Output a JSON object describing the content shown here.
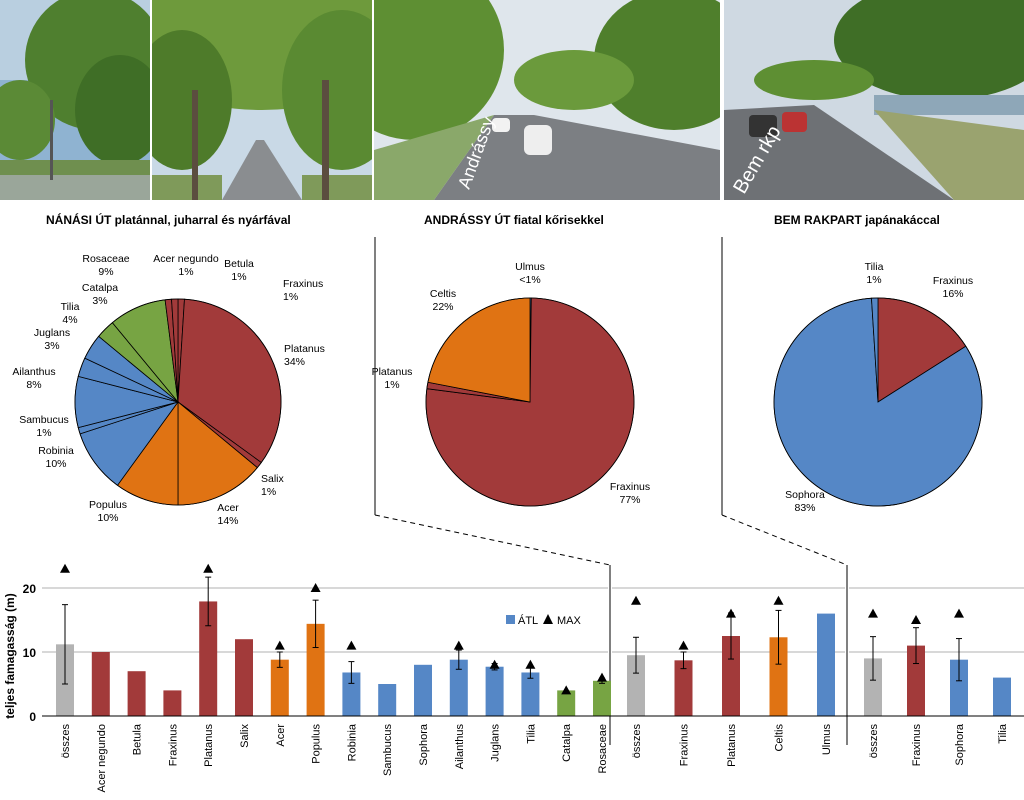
{
  "photos": [
    {
      "name": "nanasi-ut-photo-1"
    },
    {
      "name": "nanasi-ut-photo-2"
    },
    {
      "name": "andrassy-ut-photo",
      "sign": "Andrássy"
    },
    {
      "name": "bem-rakpart-photo",
      "sign": "Bem rkp"
    }
  ],
  "titles": {
    "nanasi": "NÁNÁSI ÚT platánnal, juharral és nyárfával",
    "andrassy": "ANDRÁSSY ÚT fiatal kőrisekkel",
    "bem": "BEM RAKPART japánakáccal"
  },
  "colors": {
    "red": "#a23a3a",
    "orange": "#e07313",
    "blue": "#5587c6",
    "green": "#77a443",
    "gray": "#b3b3b3"
  },
  "chart_data": [
    {
      "type": "pie",
      "title": "NÁNÁSI ÚT platánnal, juharral és nyárfával",
      "slices": [
        {
          "label": "Fraxinus",
          "value_label": "1%",
          "value": 1,
          "color": "red"
        },
        {
          "label": "Platanus",
          "value_label": "34%",
          "value": 34,
          "color": "red"
        },
        {
          "label": "Salix",
          "value_label": "1%",
          "value": 1,
          "color": "red"
        },
        {
          "label": "Acer",
          "value_label": "14%",
          "value": 14,
          "color": "orange"
        },
        {
          "label": "Populus",
          "value_label": "10%",
          "value": 10,
          "color": "orange"
        },
        {
          "label": "Robinia",
          "value_label": "10%",
          "value": 10,
          "color": "blue"
        },
        {
          "label": "Sambucus",
          "value_label": "1%",
          "value": 1,
          "color": "blue"
        },
        {
          "label": "Ailanthus",
          "value_label": "8%",
          "value": 8,
          "color": "blue"
        },
        {
          "label": "Juglans",
          "value_label": "3%",
          "value": 3,
          "color": "blue"
        },
        {
          "label": "Tilia",
          "value_label": "4%",
          "value": 4,
          "color": "blue"
        },
        {
          "label": "Catalpa",
          "value_label": "3%",
          "value": 3,
          "color": "green"
        },
        {
          "label": "Rosaceae",
          "value_label": "9%",
          "value": 9,
          "color": "green"
        },
        {
          "label": "Acer negundo",
          "value_label": "1%",
          "value": 1,
          "color": "red"
        },
        {
          "label": "Betula",
          "value_label": "1%",
          "value": 1,
          "color": "red"
        }
      ]
    },
    {
      "type": "pie",
      "title": "ANDRÁSSY ÚT fiatal kőrisekkel",
      "slices": [
        {
          "label": "Ulmus",
          "value_label": "<1%",
          "value": 0.2,
          "color": "blue"
        },
        {
          "label": "Fraxinus",
          "value_label": "77%",
          "value": 77,
          "color": "red"
        },
        {
          "label": "Platanus",
          "value_label": "1%",
          "value": 1,
          "color": "red"
        },
        {
          "label": "Celtis",
          "value_label": "22%",
          "value": 22,
          "color": "orange"
        }
      ]
    },
    {
      "type": "pie",
      "title": "BEM RAKPART japánakáccal",
      "slices": [
        {
          "label": "Fraxinus",
          "value_label": "16%",
          "value": 16,
          "color": "red"
        },
        {
          "label": "Sophora",
          "value_label": "83%",
          "value": 83,
          "color": "blue"
        },
        {
          "label": "Tilia",
          "value_label": "1%",
          "value": 1,
          "color": "blue"
        }
      ]
    },
    {
      "type": "bar",
      "ylabel": "teljes famagasság (m)",
      "ylim": [
        0,
        24
      ],
      "yticks": [
        0,
        10,
        20
      ],
      "legend": [
        {
          "label": "ÁTL",
          "color": "blue"
        },
        {
          "label": "MAX",
          "marker": "triangle"
        }
      ],
      "legend_position": "right of upper-middle",
      "groups": [
        {
          "name": "Nánási út",
          "categories": [
            "összes",
            "Acer negundo",
            "Betula",
            "Fraxinus",
            "Platanus",
            "Salix",
            "Acer",
            "Populus",
            "Robinia",
            "Sambucus",
            "Sophora",
            "Ailanthus",
            "Juglans",
            "Tilia",
            "Catalpa",
            "Rosaceae"
          ],
          "values": [
            11.2,
            10,
            7,
            4,
            17.9,
            12,
            8.8,
            14.4,
            6.8,
            5,
            8,
            8.8,
            7.7,
            6.8,
            4,
            5.5
          ],
          "err": [
            6.2,
            null,
            null,
            null,
            3.8,
            null,
            1.2,
            3.7,
            1.7,
            null,
            null,
            1.5,
            0.5,
            0.9,
            null,
            0.4
          ],
          "max": [
            23,
            null,
            null,
            null,
            23,
            null,
            11,
            20,
            11,
            null,
            null,
            11,
            8,
            8,
            4,
            6
          ],
          "colors": [
            "gray",
            "red",
            "red",
            "red",
            "red",
            "red",
            "orange",
            "orange",
            "blue",
            "blue",
            "blue",
            "blue",
            "blue",
            "blue",
            "green",
            "green"
          ]
        },
        {
          "name": "Andrássy út",
          "categories": [
            "összes",
            "Fraxinus",
            "Platanus",
            "Celtis",
            "Ulmus"
          ],
          "values": [
            9.5,
            8.7,
            12.5,
            12.3,
            16
          ],
          "err": [
            2.8,
            1.3,
            3.6,
            4.2,
            null
          ],
          "max": [
            18,
            11,
            16,
            18,
            null
          ],
          "colors": [
            "gray",
            "red",
            "red",
            "orange",
            "blue"
          ]
        },
        {
          "name": "Bem rakpart",
          "categories": [
            "összes",
            "Fraxinus",
            "Sophora",
            "Tilia"
          ],
          "values": [
            9,
            11,
            8.8,
            6
          ],
          "err": [
            3.4,
            2.8,
            3.3,
            null
          ],
          "max": [
            16,
            15,
            16,
            null
          ],
          "colors": [
            "gray",
            "red",
            "blue",
            "blue"
          ]
        }
      ]
    }
  ]
}
